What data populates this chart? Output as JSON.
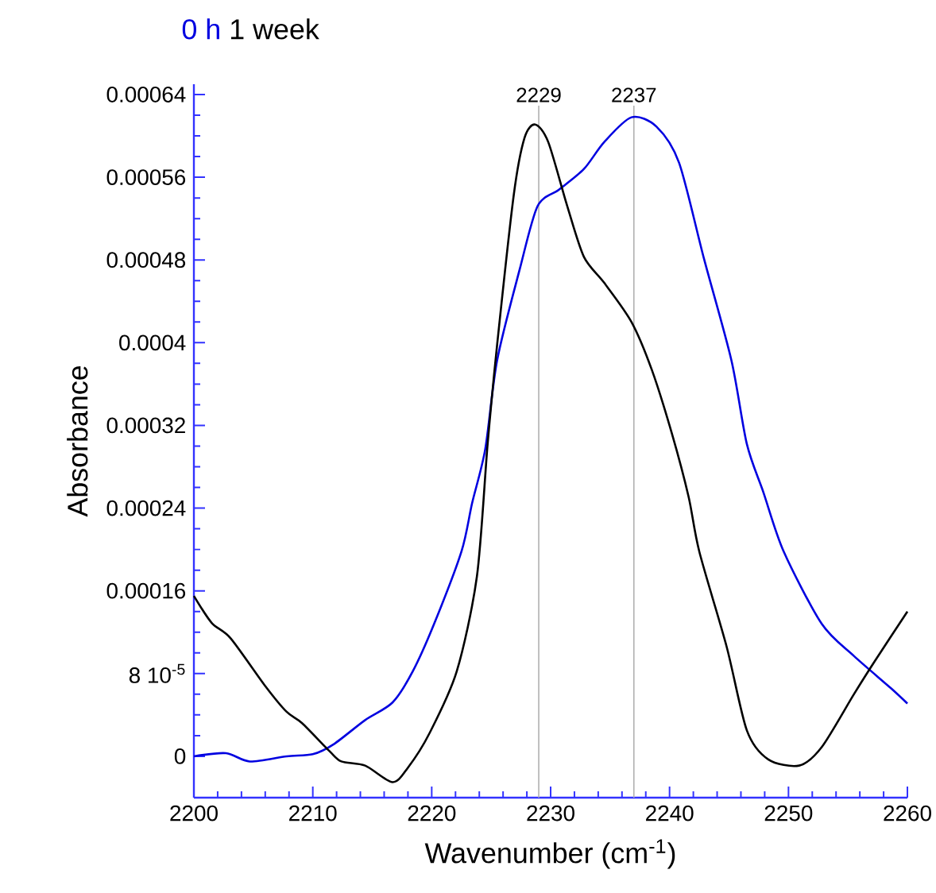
{
  "chart_data": {
    "type": "line",
    "xlabel": "Wavenumber (cm$^{-1}$)",
    "ylabel": "Absorbance",
    "xlim": [
      2200,
      2260
    ],
    "xticks": [
      2200,
      2210,
      2220,
      2230,
      2240,
      2250,
      2260
    ],
    "ylim": [
      -4e-05,
      0.00065
    ],
    "yticks": [
      0,
      {
        "value": 8e-05,
        "label": "8 10$^{-5}$"
      },
      0.00016,
      0.00024,
      0.00032,
      0.0004,
      0.00048,
      0.00056,
      0.00064
    ],
    "marker": "none",
    "line_style": "solid",
    "grid": false,
    "ref_lines": [
      {
        "axis": "x",
        "value": 2229,
        "label": "2229",
        "color": "#b0b0b0"
      },
      {
        "axis": "x",
        "value": 2237,
        "label": "2237",
        "color": "#b0b0b0"
      }
    ],
    "series": [
      {
        "name": "0 h",
        "color": "#0000e0",
        "x": [
          2200,
          2202.7,
          2204.7,
          2207.8,
          2210,
          2211.8,
          2214.4,
          2216.7,
          2218.4,
          2220.2,
          2222.5,
          2223.4,
          2224.5,
          2225.5,
          2227.4,
          2228.9,
          2230.7,
          2232.8,
          2234.5,
          2236.8,
          2238.9,
          2240.8,
          2242.9,
          2245.2,
          2246.5,
          2247.9,
          2249.6,
          2252.8,
          2255.5,
          2258.6,
          2260
        ],
        "values": [
          0,
          3e-06,
          -5e-06,
          0,
          2e-06,
          1.2e-05,
          3.5e-05,
          5.2e-05,
          8.2e-05,
          0.000128,
          0.000198,
          0.000245,
          0.000297,
          0.000383,
          0.000471,
          0.000532,
          0.000548,
          0.000568,
          0.000594,
          0.000618,
          0.000609,
          0.000574,
          0.000481,
          0.000383,
          0.000302,
          0.000255,
          0.000198,
          0.000128,
          9.7e-05,
          6.6e-05,
          5.1e-05
        ]
      },
      {
        "name": "1 week",
        "color": "#000000",
        "x": [
          2200,
          2201.5,
          2203.1,
          2206,
          2207.8,
          2209.1,
          2211.4,
          2212.4,
          2214.4,
          2216.7,
          2218,
          2219.8,
          2222.1,
          2223.8,
          2224.7,
          2225.5,
          2226.9,
          2227.8,
          2228.7,
          2229.8,
          2231.4,
          2232.8,
          2234.5,
          2236.8,
          2238.5,
          2240.2,
          2241.6,
          2242.5,
          2244.8,
          2246.5,
          2248.3,
          2250.9,
          2252.8,
          2255.5,
          2257.2,
          2260
        ],
        "values": [
          0.000155,
          0.000129,
          0.000114,
          6.8e-05,
          4.3e-05,
          3.2e-05,
          5e-06,
          -5e-06,
          -9e-06,
          -2.5e-05,
          -1.1e-05,
          2.2e-05,
          8.2e-05,
          0.000174,
          0.000302,
          0.000398,
          0.000543,
          0.000598,
          0.000611,
          0.000594,
          0.000532,
          0.000483,
          0.000458,
          0.00042,
          0.000374,
          0.000312,
          0.000251,
          0.000198,
          0.000106,
          2.5e-05,
          -3e-06,
          -9e-06,
          9e-06,
          6e-05,
          9.1e-05,
          0.00014
        ]
      }
    ]
  }
}
